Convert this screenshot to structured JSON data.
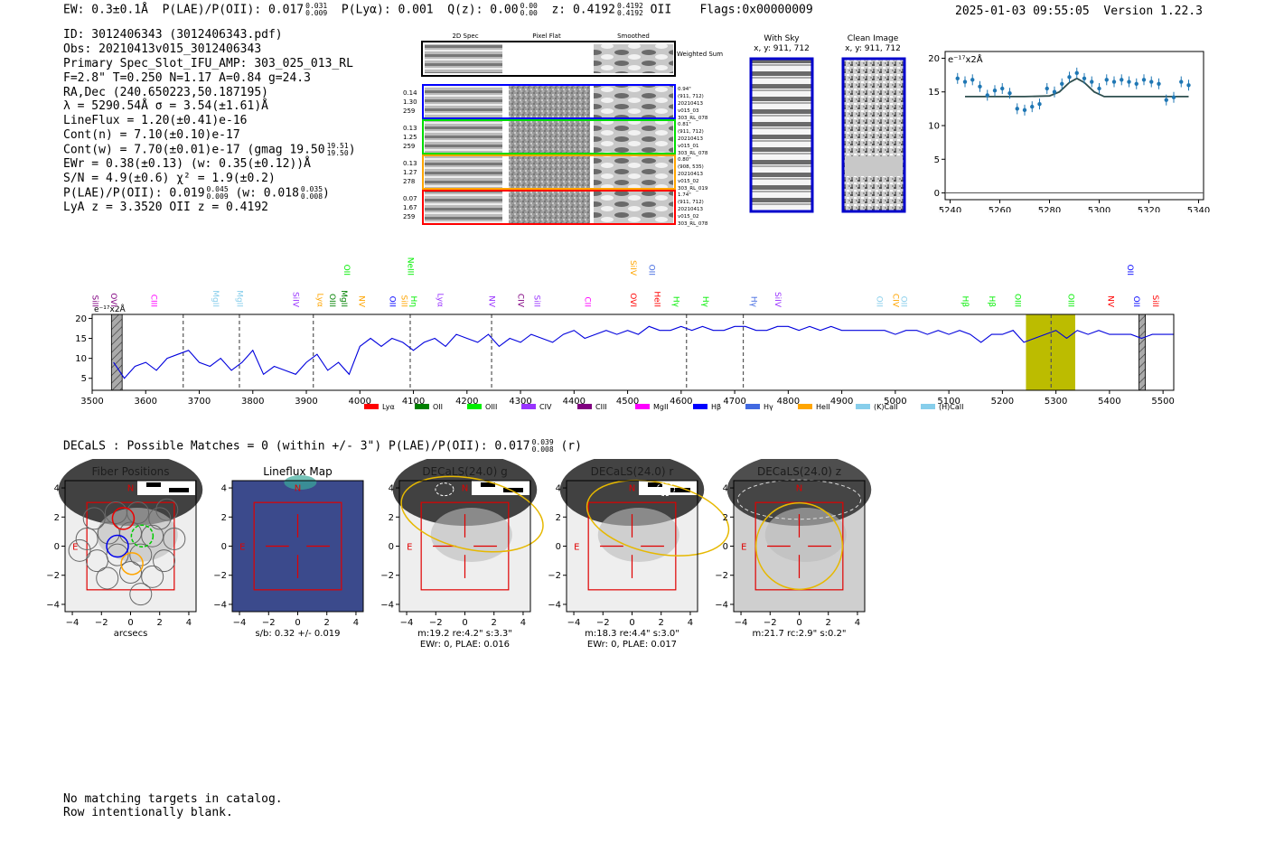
{
  "header": {
    "ew_prefix": "EW: 0.3±0.1Å",
    "plae_label": "P(LAE)/P(OII): 0.017",
    "plae_hi": "0.031",
    "plae_lo": "0.009",
    "plya": "P(Lyα): 0.001",
    "qz_label": "Q(z): 0.00",
    "qz_hi": "0.00",
    "qz_lo": "0.00",
    "z_label": "z: 0.4192",
    "z_hi": "0.4192",
    "z_lo": "0.4192",
    "z_line": "OII",
    "flags": "Flags:0x00000009",
    "datetime": "2025-01-03 09:55:05",
    "version": "Version 1.22.3"
  },
  "info": {
    "id": "ID: 3012406343 (3012406343.pdf)",
    "obs": "Obs: 20210413v015_3012406343",
    "primary": "Primary Spec_Slot_IFU_AMP: 303_025_013_RL",
    "fwhm": "F=2.8\"  T=0.250  N=1.17  A=0.84  g=24.3",
    "radec": "RA,Dec (240.650223,50.187195)",
    "lambda_sigma": "λ = 5290.54Å  σ = 3.54(±1.61)Å",
    "lineflux": "LineFlux = 1.20(±0.41)e-16",
    "contn": "Cont(n) = 7.10(±0.10)e-17",
    "contw": "Cont(w) = 7.70(±0.01)e-17 (gmag 19.50",
    "contw_hi": "19.51",
    "contw_lo": "19.50",
    "ewr": "EWr = 0.38(±0.13) (w: 0.35(±0.12))Å",
    "sn": "S/N = 4.9(±0.6)  χ² = 1.9(±0.2)",
    "plae": "P(LAE)/P(OII): 0.019",
    "plae_hi": "0.045",
    "plae_lo": "0.009",
    "plae_w": "(w: 0.018",
    "plae_w_hi": "0.035",
    "plae_w_lo": "0.008",
    "lya_z": "LyA z = 3.3520  OII z = 0.4192"
  },
  "cutouts": {
    "col_headers": [
      "2D Spec",
      "Pixel Flat",
      "Smoothed"
    ],
    "weighted_sum": "Weighted Sum",
    "rows": [
      {
        "left": [
          "0.14",
          "1.30",
          "259"
        ],
        "right": [
          "0.94\"",
          "(911, 712)",
          "20210413",
          "v015_03",
          "303_RL_078"
        ],
        "color": "#0000ff"
      },
      {
        "left": [
          "0.13",
          "1.25",
          "259"
        ],
        "right": [
          "0.81\"",
          "(911, 712)",
          "20210413",
          "v015_01",
          "303_RL_078"
        ],
        "color": "#00dd00"
      },
      {
        "left": [
          "0.13",
          "1.27",
          "278"
        ],
        "right": [
          "0.80\"",
          "(908, 535)",
          "20210413",
          "v015_02",
          "303_RL_019"
        ],
        "color": "#ffa500"
      },
      {
        "left": [
          "0.07",
          "1.67",
          "259"
        ],
        "right": [
          "1.74\"",
          "(911, 712)",
          "20210413",
          "v015_02",
          "303_RL_078"
        ],
        "color": "#ff0000"
      }
    ],
    "with_sky_title": "With Sky",
    "with_sky_xy": "x, y: 911, 712",
    "clean_title": "Clean Image",
    "clean_xy": "x, y: 911, 712"
  },
  "zoom_chart": {
    "type": "scatter",
    "unit_label": "e⁻¹⁷x2Å",
    "x": [
      5243,
      5246,
      5249,
      5252,
      5255,
      5258,
      5261,
      5264,
      5267,
      5270,
      5273,
      5276,
      5279,
      5282,
      5285,
      5288,
      5291,
      5294,
      5297,
      5300,
      5303,
      5306,
      5309,
      5312,
      5315,
      5318,
      5321,
      5324,
      5327,
      5330,
      5333,
      5336
    ],
    "y": [
      17.0,
      16.5,
      16.8,
      15.8,
      14.5,
      15.2,
      15.5,
      14.8,
      12.5,
      12.3,
      12.8,
      13.2,
      15.5,
      15.0,
      16.2,
      17.2,
      17.8,
      17.0,
      16.5,
      15.5,
      16.8,
      16.5,
      16.8,
      16.5,
      16.2,
      16.8,
      16.5,
      16.2,
      13.8,
      14.2,
      16.5,
      16.0
    ],
    "fit_x": [
      5246,
      5270,
      5280,
      5284,
      5288,
      5291,
      5294,
      5298,
      5302,
      5336
    ],
    "fit_y": [
      14.3,
      14.3,
      14.4,
      15.0,
      16.4,
      17.0,
      16.4,
      15.0,
      14.3,
      14.3
    ],
    "ylim": [
      -1,
      21
    ],
    "xlim": [
      5238,
      5342
    ],
    "yticks": [
      "0",
      "5",
      "10",
      "15",
      "20"
    ],
    "xticks": [
      "5240",
      "5260",
      "5280",
      "5300",
      "5320",
      "5340"
    ]
  },
  "chart_data": {
    "type": "line",
    "title": "",
    "unit_label": "e⁻¹⁷x2Å",
    "xlim": [
      3500,
      5520
    ],
    "ylim": [
      2,
      21
    ],
    "xticks": [
      "3500",
      "3600",
      "3700",
      "3800",
      "3900",
      "4000",
      "4100",
      "4200",
      "4300",
      "4400",
      "4500",
      "4600",
      "4700",
      "4800",
      "4900",
      "5000",
      "5100",
      "5200",
      "5300",
      "5400",
      "5500"
    ],
    "yticks": [
      "5",
      "10",
      "15",
      "20"
    ],
    "x": [
      3540,
      3560,
      3580,
      3600,
      3620,
      3640,
      3660,
      3680,
      3700,
      3720,
      3740,
      3760,
      3780,
      3800,
      3820,
      3840,
      3860,
      3880,
      3900,
      3920,
      3940,
      3960,
      3980,
      4000,
      4020,
      4040,
      4060,
      4080,
      4100,
      4120,
      4140,
      4160,
      4180,
      4200,
      4220,
      4240,
      4260,
      4280,
      4300,
      4320,
      4340,
      4360,
      4380,
      4400,
      4420,
      4440,
      4460,
      4480,
      4500,
      4520,
      4540,
      4560,
      4580,
      4600,
      4620,
      4640,
      4660,
      4680,
      4700,
      4720,
      4740,
      4760,
      4780,
      4800,
      4820,
      4840,
      4860,
      4880,
      4900,
      4920,
      4940,
      4960,
      4980,
      5000,
      5020,
      5040,
      5060,
      5080,
      5100,
      5120,
      5140,
      5160,
      5180,
      5200,
      5220,
      5240,
      5260,
      5280,
      5300,
      5320,
      5340,
      5360,
      5380,
      5400,
      5420,
      5440,
      5460,
      5480,
      5500,
      5520
    ],
    "values": [
      9,
      5,
      8,
      9,
      7,
      10,
      11,
      12,
      9,
      8,
      10,
      7,
      9,
      12,
      6,
      8,
      7,
      6,
      9,
      11,
      7,
      9,
      6,
      13,
      15,
      13,
      15,
      14,
      12,
      14,
      15,
      13,
      16,
      15,
      14,
      16,
      13,
      15,
      14,
      16,
      15,
      14,
      16,
      17,
      15,
      16,
      17,
      16,
      17,
      16,
      18,
      17,
      17,
      18,
      17,
      18,
      17,
      17,
      18,
      18,
      17,
      17,
      18,
      18,
      17,
      18,
      17,
      18,
      17,
      17,
      17,
      17,
      17,
      16,
      17,
      17,
      16,
      17,
      16,
      17,
      16,
      14,
      16,
      16,
      17,
      14,
      15,
      16,
      17,
      15,
      17,
      16,
      17,
      16,
      16,
      16,
      15,
      16,
      16,
      16
    ],
    "vlines": [
      3670,
      3775,
      3913,
      4094,
      4246,
      4610,
      4716,
      5291
    ],
    "hatched_regions": [
      [
        3536,
        3556
      ],
      [
        5455,
        5467
      ]
    ],
    "highlight_region": [
      5244,
      5336
    ],
    "legend": [
      "Lyα",
      "OII",
      "OIII",
      "CIV",
      "CIII",
      "MgII",
      "Hβ",
      "Hγ",
      "HeII",
      "(K)CaII",
      "(H)CaII"
    ],
    "legend_colors": [
      "#ff0000",
      "#008000",
      "#00ee00",
      "#9933ff",
      "#800080",
      "#ff00ff",
      "#0000ff",
      "#4169e1",
      "#ffa500",
      "#87ceeb",
      "#87ceeb"
    ],
    "line_labels": [
      {
        "text": "SiII",
        "w": 3505,
        "color": "#800080",
        "row": 0
      },
      {
        "text": "OVI",
        "w": 3540,
        "color": "#800080",
        "row": 0
      },
      {
        "text": "CIII",
        "w": 3615,
        "color": "#ff00ff",
        "row": 0
      },
      {
        "text": "MgII",
        "w": 3730,
        "color": "#87ceeb",
        "row": 0
      },
      {
        "text": "MgII",
        "w": 3775,
        "color": "#87ceeb",
        "row": 0
      },
      {
        "text": "SiIV",
        "w": 3880,
        "color": "#9933ff",
        "row": 0
      },
      {
        "text": "Lyα",
        "w": 3925,
        "color": "#ffa500",
        "row": 0
      },
      {
        "text": "OIII",
        "w": 3948,
        "color": "#008000",
        "row": 0
      },
      {
        "text": "MgII",
        "w": 3970,
        "color": "#008000",
        "row": 0
      },
      {
        "text": "OII",
        "w": 3975,
        "color": "#00ee00",
        "row": 1
      },
      {
        "text": "NV",
        "w": 4003,
        "color": "#ffa500",
        "row": 0
      },
      {
        "text": "OII",
        "w": 4060,
        "color": "#0000ff",
        "row": 0
      },
      {
        "text": "SiII",
        "w": 4082,
        "color": "#ffa500",
        "row": 0
      },
      {
        "text": "NeIII",
        "w": 4094,
        "color": "#00ee00",
        "row": 1
      },
      {
        "text": "Hη",
        "w": 4100,
        "color": "#00ee00",
        "row": 0
      },
      {
        "text": "Lyα",
        "w": 4150,
        "color": "#9933ff",
        "row": 0
      },
      {
        "text": "NV",
        "w": 4246,
        "color": "#9933ff",
        "row": 0
      },
      {
        "text": "CIV",
        "w": 4300,
        "color": "#800080",
        "row": 0
      },
      {
        "text": "SiII",
        "w": 4330,
        "color": "#9933ff",
        "row": 0
      },
      {
        "text": "CII",
        "w": 4425,
        "color": "#ff00ff",
        "row": 0
      },
      {
        "text": "OVI",
        "w": 4510,
        "color": "#ff0000",
        "row": 0
      },
      {
        "text": "SiIV",
        "w": 4510,
        "color": "#ffa500",
        "row": 1
      },
      {
        "text": "OII",
        "w": 4545,
        "color": "#4169e1",
        "row": 1
      },
      {
        "text": "HeII",
        "w": 4555,
        "color": "#ff0000",
        "row": 0
      },
      {
        "text": "Hγ",
        "w": 4590,
        "color": "#00ee00",
        "row": 0
      },
      {
        "text": "Hγ",
        "w": 4645,
        "color": "#00ee00",
        "row": 0
      },
      {
        "text": "Hγ",
        "w": 4735,
        "color": "#4169e1",
        "row": 0
      },
      {
        "text": "SiIV",
        "w": 4780,
        "color": "#9933ff",
        "row": 0
      },
      {
        "text": "OII",
        "w": 4970,
        "color": "#87ceeb",
        "row": 0
      },
      {
        "text": "CIV",
        "w": 5000,
        "color": "#ffa500",
        "row": 0
      },
      {
        "text": "OII",
        "w": 5015,
        "color": "#87ceeb",
        "row": 0
      },
      {
        "text": "Hβ",
        "w": 5130,
        "color": "#00ee00",
        "row": 0
      },
      {
        "text": "Hβ",
        "w": 5180,
        "color": "#00ee00",
        "row": 0
      },
      {
        "text": "OIII",
        "w": 5228,
        "color": "#00ee00",
        "row": 0
      },
      {
        "text": "OIII",
        "w": 5328,
        "color": "#00ee00",
        "row": 0
      },
      {
        "text": "NV",
        "w": 5402,
        "color": "#ff0000",
        "row": 0
      },
      {
        "text": "OII",
        "w": 5438,
        "color": "#0000ff",
        "row": 1
      },
      {
        "text": "OII",
        "w": 5450,
        "color": "#0000ff",
        "row": 0
      },
      {
        "text": "SiII",
        "w": 5485,
        "color": "#ff0000",
        "row": 0
      }
    ]
  },
  "decals": {
    "line_label": "DECaLS : Possible Matches = 0 (within +/- 3\")  P(LAE)/P(OII): 0.017",
    "line_hi": "0.039",
    "line_lo": "0.008",
    "line_band": "(r)",
    "panels": [
      {
        "title": "Fiber Positions",
        "caption": [
          "arcsecs"
        ]
      },
      {
        "title": "Lineflux Map",
        "caption": [
          "s/b: 0.32 +/- 0.019"
        ]
      },
      {
        "title": "DECaLS(24.0) g",
        "caption": [
          "m:19.2  re:4.2\"  s:3.3\"",
          "EWr: 0, PLAE: 0.016"
        ]
      },
      {
        "title": "DECaLS(24.0) r",
        "caption": [
          "m:18.3  re:4.4\"  s:3.0\"",
          "EWr: 0, PLAE: 0.017"
        ]
      },
      {
        "title": "DECaLS(24.0) z",
        "caption": [
          "m:21.7 rc:2.9\"  s:0.2\""
        ]
      }
    ],
    "ticks_x": [
      "−4",
      "−2",
      "0",
      "2",
      "4"
    ],
    "ticks_y": [
      "4",
      "2",
      "0",
      "−2",
      "−4"
    ],
    "north": "N",
    "east": "E"
  },
  "footer": {
    "line1": "No matching targets in catalog.",
    "line2": "Row intentionally blank."
  }
}
